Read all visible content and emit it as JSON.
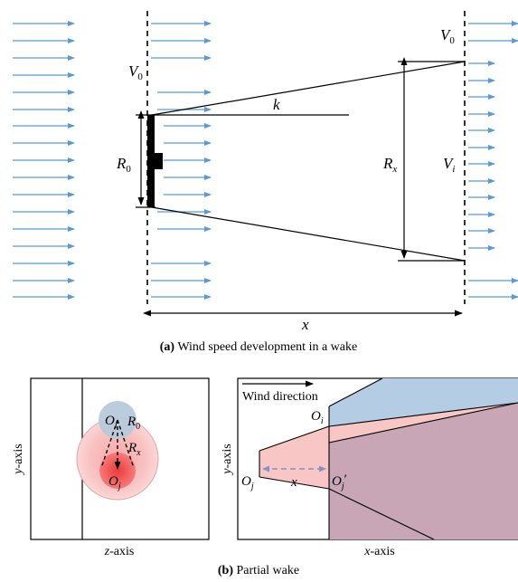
{
  "panel_a": {
    "caption_tag": "(a)",
    "caption_text": " Wind speed development in a wake",
    "labels": {
      "V0_left_base": "V",
      "V0_left_sub": "0",
      "V0_right_base": "V",
      "V0_right_sub": "0",
      "R0_base": "R",
      "R0_sub": "0",
      "k": "k",
      "Rx_base": "R",
      "Rx_sub": "x",
      "Vi_base": "V",
      "Vi_sub": "i",
      "x": "x"
    },
    "colors": {
      "wind_arrow": "#5b9bd5"
    }
  },
  "panel_b": {
    "caption_tag": "(b)",
    "caption_text": " Partial wake",
    "left_view": {
      "y_axis_base": "y",
      "y_axis_suffix": "-axis",
      "z_axis_base": "z",
      "z_axis_suffix": "-axis",
      "Oi_base": "O",
      "Oi_sub": "i",
      "R0_base": "R",
      "R0_sub": "0",
      "Rx_base": "R",
      "Rx_sub": "x",
      "Oj_base": "O",
      "Oj_sub": "j"
    },
    "right_view": {
      "wind_direction": "Wind direction",
      "y_axis_base": "y",
      "y_axis_suffix": "-axis",
      "x_axis_base": "x",
      "x_axis_suffix": "-axis",
      "Oi_base": "O",
      "Oi_sub": "i",
      "Oj_base": "O",
      "Oj_sub": "j",
      "Ojp_base": "O",
      "Ojp_sub": "j",
      "Ojp_prime": "′",
      "x": "x"
    },
    "colors": {
      "blue_wake": "#b4cce4",
      "pink_wake": "#f9c6c6",
      "overlap": "#c8a6b6",
      "red_core": "#f26d6d",
      "arrow_dashed": "#8b8fc7"
    }
  }
}
